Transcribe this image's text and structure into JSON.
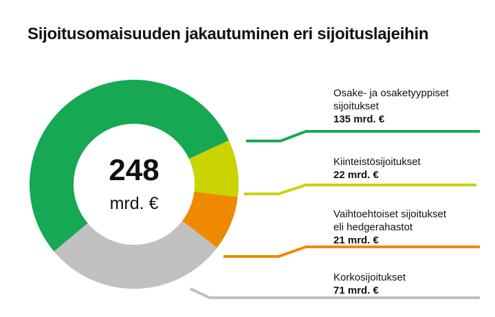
{
  "title": "Sijoitusomaisuuden jakautuminen eri sijoituslajeihin",
  "chart_data": {
    "type": "pie",
    "title": "Sijoitusomaisuuden jakautuminen eri sijoituslajeihin",
    "total": {
      "value": "248",
      "unit": "mrd. €"
    },
    "slices": [
      {
        "label_lines": [
          "Osake- ja osaketyyppiset",
          "sijoitukset"
        ],
        "value": 135,
        "value_label": "135 mrd. €",
        "color": "#16a853"
      },
      {
        "label_lines": [
          "Kiinteistösijoitukset"
        ],
        "value": 22,
        "value_label": "22 mrd. €",
        "color": "#c9d400"
      },
      {
        "label_lines": [
          "Vaihtoehtoiset sijoitukset",
          "eli hedgerahastot"
        ],
        "value": 21,
        "value_label": "21 mrd. €",
        "color": "#ef8a00"
      },
      {
        "label_lines": [
          "Korkosijoitukset"
        ],
        "value": 71,
        "value_label": "71 mrd. €",
        "color": "#c0c0c0"
      }
    ]
  }
}
